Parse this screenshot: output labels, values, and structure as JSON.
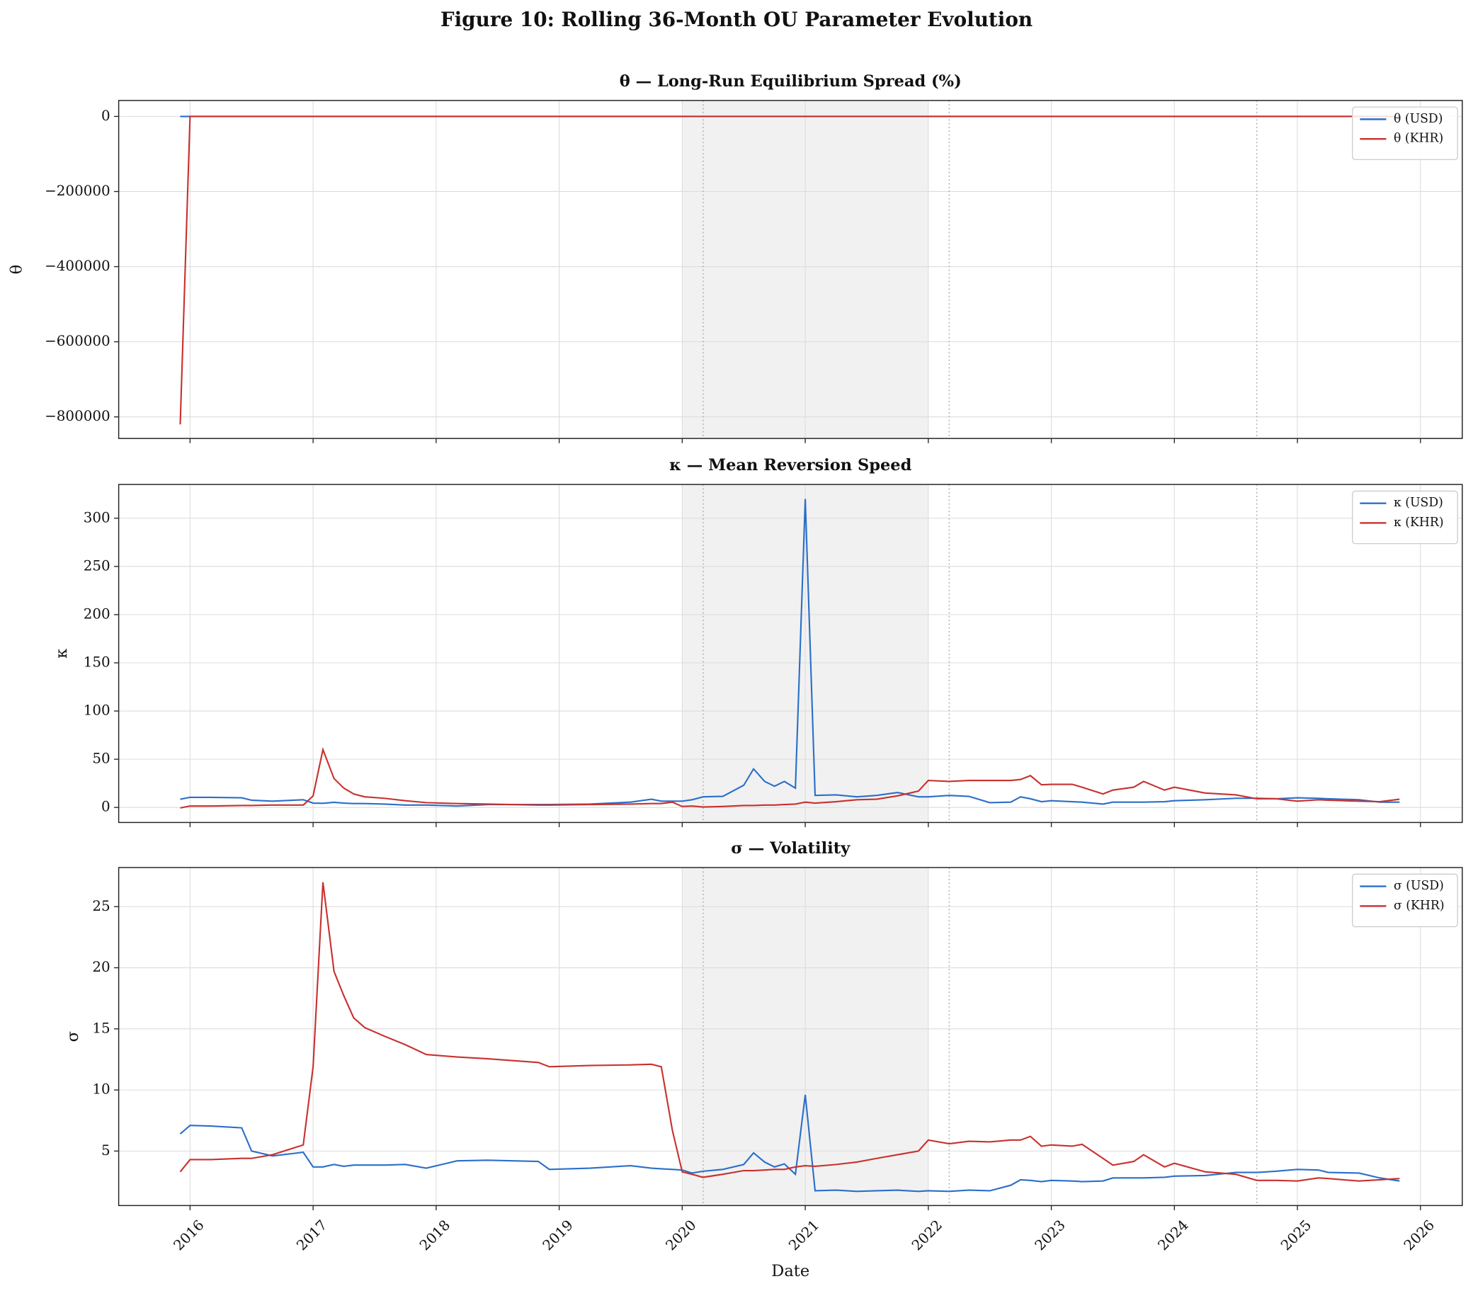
{
  "title": "Figure 10: Rolling 36-Month OU Parameter Evolution",
  "chart_data": [
    {
      "type": "line",
      "title": "θ — Long-Run Equilibrium Spread (%)",
      "ylabel": "θ",
      "x": [
        2015.92,
        2016.0,
        2016.17,
        2016.42,
        2016.5,
        2016.67,
        2016.92,
        2017.0,
        2017.08,
        2017.17,
        2017.25,
        2017.33,
        2017.42,
        2017.58,
        2017.75,
        2017.92,
        2018.17,
        2018.42,
        2018.83,
        2018.92,
        2019.25,
        2019.58,
        2019.75,
        2019.83,
        2019.92,
        2020.0,
        2020.08,
        2020.17,
        2020.33,
        2020.5,
        2020.58,
        2020.67,
        2020.75,
        2020.83,
        2020.92,
        2021.0,
        2021.08,
        2021.25,
        2021.42,
        2021.58,
        2021.75,
        2021.92,
        2022.0,
        2022.17,
        2022.33,
        2022.5,
        2022.67,
        2022.75,
        2022.83,
        2022.92,
        2023.0,
        2023.17,
        2023.25,
        2023.42,
        2023.5,
        2023.67,
        2023.75,
        2023.92,
        2024.0,
        2024.25,
        2024.5,
        2024.67,
        2024.83,
        2025.0,
        2025.17,
        2025.25,
        2025.5,
        2025.67,
        2025.83
      ],
      "series": [
        {
          "name": "θ (USD)",
          "color": "#2a6fc9",
          "values": [
            0,
            0,
            0,
            0,
            0,
            0,
            0,
            0,
            0,
            0,
            0,
            0,
            0,
            0,
            0,
            0,
            0,
            0,
            0,
            0,
            0,
            0,
            0,
            0,
            0,
            0,
            0,
            0,
            0,
            0,
            0,
            0,
            0,
            0,
            0,
            0,
            0,
            0,
            0,
            0,
            0,
            0,
            0,
            0,
            0,
            0,
            0,
            0,
            0,
            0,
            0,
            0,
            0,
            0,
            0,
            0,
            0,
            0,
            0,
            0,
            0,
            0,
            0,
            0,
            0,
            0,
            0,
            0,
            0
          ]
        },
        {
          "name": "θ (KHR)",
          "color": "#c8312f",
          "values": [
            -820000,
            0,
            0,
            0,
            0,
            0,
            0,
            0,
            0,
            0,
            0,
            0,
            0,
            0,
            0,
            0,
            0,
            0,
            0,
            0,
            0,
            0,
            0,
            0,
            0,
            0,
            0,
            0,
            0,
            0,
            0,
            0,
            0,
            0,
            0,
            0,
            0,
            0,
            0,
            0,
            0,
            0,
            0,
            0,
            0,
            0,
            0,
            0,
            0,
            0,
            0,
            0,
            0,
            0,
            0,
            0,
            0,
            0,
            0,
            0,
            0,
            0,
            0,
            0,
            0,
            0,
            0,
            0,
            0
          ]
        }
      ],
      "xlim": [
        2015.42,
        2026.34
      ],
      "xticks": [
        2016,
        2017,
        2018,
        2019,
        2020,
        2021,
        2022,
        2023,
        2024,
        2025,
        2026
      ],
      "ylim": [
        -857500,
        42500
      ],
      "yticks": [
        {
          "value": -800000,
          "label": "−800000"
        },
        {
          "value": -600000,
          "label": "−600000"
        },
        {
          "value": -400000,
          "label": "−400000"
        },
        {
          "value": -200000,
          "label": "−200000"
        },
        0
      ],
      "grid": true,
      "legend": "upper right",
      "shaded_span": [
        2020,
        2022
      ],
      "event_lines": [
        2020.17,
        2022.17,
        2024.67
      ]
    },
    {
      "type": "line",
      "title": "κ — Mean Reversion Speed",
      "ylabel": "κ",
      "x": [
        2015.92,
        2016.0,
        2016.17,
        2016.42,
        2016.5,
        2016.67,
        2016.92,
        2017.0,
        2017.08,
        2017.17,
        2017.25,
        2017.33,
        2017.42,
        2017.58,
        2017.75,
        2017.92,
        2018.17,
        2018.42,
        2018.83,
        2018.92,
        2019.25,
        2019.58,
        2019.75,
        2019.83,
        2019.92,
        2020.0,
        2020.08,
        2020.17,
        2020.33,
        2020.5,
        2020.58,
        2020.67,
        2020.75,
        2020.83,
        2020.92,
        2021.0,
        2021.08,
        2021.25,
        2021.42,
        2021.58,
        2021.75,
        2021.92,
        2022.0,
        2022.17,
        2022.33,
        2022.5,
        2022.67,
        2022.75,
        2022.83,
        2022.92,
        2023.0,
        2023.17,
        2023.25,
        2023.42,
        2023.5,
        2023.67,
        2023.75,
        2023.92,
        2024.0,
        2024.25,
        2024.5,
        2024.67,
        2024.83,
        2025.0,
        2025.17,
        2025.25,
        2025.5,
        2025.67,
        2025.83
      ],
      "series": [
        {
          "name": "κ (USD)",
          "color": "#2a6fc9",
          "values": [
            8.5,
            10.5,
            10.5,
            10,
            7.5,
            6.5,
            8,
            4.5,
            4.3,
            5.3,
            4.5,
            4,
            4,
            3.5,
            2.5,
            2.5,
            1.5,
            3,
            3,
            3,
            3.5,
            5.5,
            8.5,
            6.5,
            6.5,
            6.5,
            8,
            11,
            11.5,
            23,
            40,
            27,
            22,
            27,
            20,
            320,
            12.5,
            13,
            11,
            12.5,
            15.5,
            11,
            11,
            12.5,
            11.5,
            5,
            5.5,
            11,
            9,
            6,
            7,
            6,
            5.5,
            3.5,
            5.5,
            5.5,
            5.5,
            6,
            7,
            8,
            9.5,
            9.5,
            9,
            10,
            9.5,
            9,
            8,
            5.5,
            5.5
          ]
        },
        {
          "name": "κ (KHR)",
          "color": "#c8312f",
          "values": [
            -0.5,
            1.5,
            1.5,
            2,
            2,
            2.5,
            2.5,
            12,
            60,
            30,
            20,
            14,
            11,
            9.5,
            7,
            5,
            4,
            3.5,
            2.5,
            2.5,
            3,
            3.5,
            4,
            4,
            5.5,
            1,
            1.5,
            0.5,
            1,
            2,
            2,
            2.5,
            2.5,
            3,
            3.5,
            5.5,
            4.5,
            6,
            8,
            8.5,
            12,
            17,
            28,
            27,
            28,
            28,
            28,
            29,
            33,
            23.5,
            24,
            24,
            21,
            14,
            18,
            21,
            27,
            18,
            21,
            15,
            13,
            9,
            9,
            6.5,
            8,
            7.5,
            6.5,
            6,
            8.5
          ]
        }
      ],
      "xlim": [
        2015.42,
        2026.34
      ],
      "xticks": [
        2016,
        2017,
        2018,
        2019,
        2020,
        2021,
        2022,
        2023,
        2024,
        2025,
        2026
      ],
      "ylim": [
        -15.6,
        335
      ],
      "yticks": [
        0,
        50,
        100,
        150,
        200,
        250,
        300
      ],
      "grid": true,
      "legend": "upper right",
      "shaded_span": [
        2020,
        2022
      ],
      "event_lines": [
        2020.17,
        2022.17,
        2024.67
      ]
    },
    {
      "type": "line",
      "title": "σ — Volatility",
      "ylabel": "σ",
      "xlabel": "Date",
      "x": [
        2015.92,
        2016.0,
        2016.17,
        2016.42,
        2016.5,
        2016.67,
        2016.92,
        2017.0,
        2017.08,
        2017.17,
        2017.25,
        2017.33,
        2017.42,
        2017.58,
        2017.75,
        2017.92,
        2018.17,
        2018.42,
        2018.83,
        2018.92,
        2019.25,
        2019.58,
        2019.75,
        2019.83,
        2019.92,
        2020.0,
        2020.08,
        2020.17,
        2020.33,
        2020.5,
        2020.58,
        2020.67,
        2020.75,
        2020.83,
        2020.92,
        2021.0,
        2021.08,
        2021.25,
        2021.42,
        2021.58,
        2021.75,
        2021.92,
        2022.0,
        2022.17,
        2022.33,
        2022.5,
        2022.67,
        2022.75,
        2022.83,
        2022.92,
        2023.0,
        2023.17,
        2023.25,
        2023.42,
        2023.5,
        2023.67,
        2023.75,
        2023.92,
        2024.0,
        2024.25,
        2024.5,
        2024.67,
        2024.83,
        2025.0,
        2025.17,
        2025.25,
        2025.5,
        2025.67,
        2025.83
      ],
      "series": [
        {
          "name": "σ (USD)",
          "color": "#2a6fc9",
          "values": [
            6.4,
            7.1,
            7.05,
            6.9,
            5.0,
            4.6,
            4.9,
            3.7,
            3.7,
            3.9,
            3.75,
            3.85,
            3.85,
            3.85,
            3.9,
            3.6,
            4.2,
            4.25,
            4.15,
            3.5,
            3.6,
            3.8,
            3.6,
            3.55,
            3.5,
            3.45,
            3.2,
            3.35,
            3.5,
            3.9,
            4.85,
            4.1,
            3.7,
            3.95,
            3.1,
            9.6,
            1.75,
            1.8,
            1.7,
            1.75,
            1.8,
            1.7,
            1.75,
            1.7,
            1.8,
            1.75,
            2.2,
            2.65,
            2.6,
            2.5,
            2.6,
            2.55,
            2.5,
            2.55,
            2.8,
            2.8,
            2.8,
            2.85,
            2.95,
            3.0,
            3.25,
            3.25,
            3.35,
            3.5,
            3.45,
            3.25,
            3.2,
            2.8,
            2.55
          ]
        },
        {
          "name": "σ (KHR)",
          "color": "#c8312f",
          "values": [
            3.3,
            4.3,
            4.3,
            4.4,
            4.4,
            4.7,
            5.5,
            11.9,
            27,
            19.7,
            17.7,
            15.9,
            15.1,
            14.4,
            13.7,
            12.9,
            12.7,
            12.55,
            12.25,
            11.9,
            12.0,
            12.05,
            12.1,
            11.9,
            6.7,
            3.3,
            3.1,
            2.85,
            3.1,
            3.4,
            3.4,
            3.45,
            3.5,
            3.5,
            3.7,
            3.8,
            3.75,
            3.9,
            4.1,
            4.4,
            4.7,
            5.0,
            5.9,
            5.6,
            5.8,
            5.75,
            5.9,
            5.9,
            6.2,
            5.4,
            5.5,
            5.4,
            5.55,
            4.4,
            3.85,
            4.15,
            4.7,
            3.7,
            4.0,
            3.3,
            3.1,
            2.6,
            2.6,
            2.55,
            2.8,
            2.75,
            2.55,
            2.65,
            2.75
          ]
        }
      ],
      "xlim": [
        2015.42,
        2026.34
      ],
      "xticks": [
        2016,
        2017,
        2018,
        2019,
        2020,
        2021,
        2022,
        2023,
        2024,
        2025,
        2026
      ],
      "ylim": [
        0.54,
        28.2
      ],
      "yticks": [
        5,
        10,
        15,
        20,
        25
      ],
      "grid": true,
      "legend": "upper right",
      "shaded_span": [
        2020,
        2022
      ],
      "event_lines": [
        2020.17,
        2022.17,
        2024.67
      ]
    }
  ]
}
